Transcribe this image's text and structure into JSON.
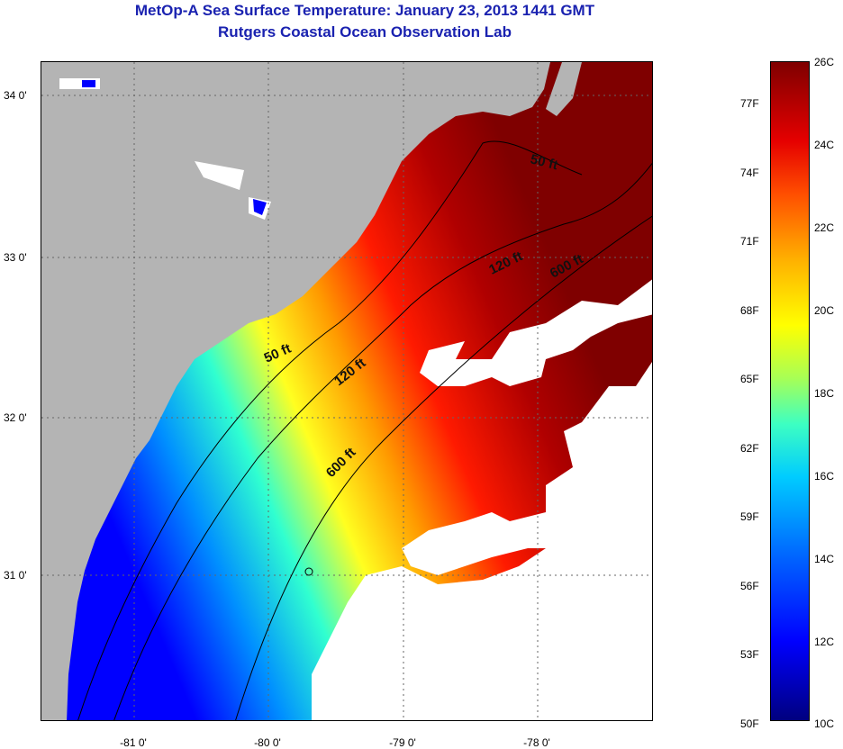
{
  "header": {
    "title": "MetOp-A Sea Surface Temperature:  January 23, 2013 1441 GMT",
    "subtitle": "Rutgers Coastal Ocean Observation Lab"
  },
  "map": {
    "y_labels": [
      "34 0'",
      "33 0'",
      "32 0'",
      "31 0'"
    ],
    "x_labels": [
      "-81 0'",
      "-80 0'",
      "-79 0'",
      "-78 0'"
    ],
    "contour_labels": [
      "50 ft",
      "120 ft",
      "600 ft",
      "50 ft",
      "120 ft",
      "600 ft"
    ],
    "colors": {
      "land": "#b4b4b4",
      "cloud": "#ffffff",
      "warm": "#7f0000",
      "cold": "#0000ff"
    }
  },
  "colorbar": {
    "fahrenheit": [
      "77F",
      "74F",
      "71F",
      "68F",
      "65F",
      "62F",
      "59F",
      "56F",
      "53F",
      "50F"
    ],
    "celsius": [
      "26C",
      "24C",
      "22C",
      "20C",
      "18C",
      "16C",
      "14C",
      "12C",
      "10C"
    ]
  }
}
